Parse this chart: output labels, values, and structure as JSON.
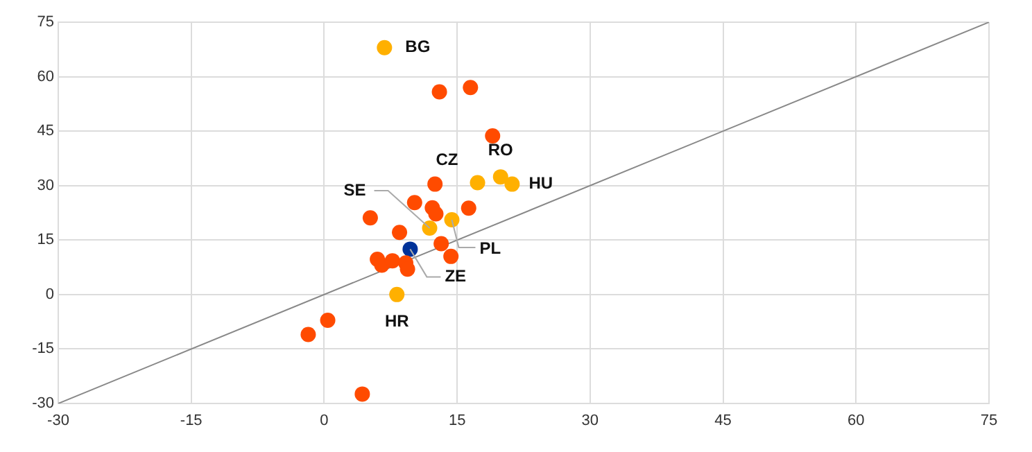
{
  "chart_data": {
    "type": "scatter",
    "xlim": [
      -30,
      75
    ],
    "ylim": [
      -30,
      75
    ],
    "xticks": [
      -30,
      -15,
      0,
      15,
      30,
      45,
      60,
      75
    ],
    "yticks": [
      -30,
      -15,
      0,
      15,
      30,
      45,
      60,
      75
    ],
    "grid": true,
    "legend": false,
    "marker": "circle",
    "series": [
      {
        "color": "#ff4b00",
        "x": [
          13.0,
          16.5,
          19.0,
          12.5,
          10.2,
          12.2,
          12.6,
          16.3,
          5.2,
          8.5,
          13.2,
          14.3,
          6.0,
          6.5,
          7.7,
          9.2,
          9.4,
          0.4,
          -1.8,
          4.3
        ],
        "values": [
          55.8,
          57,
          43.7,
          30.4,
          25.3,
          23.9,
          22.2,
          23.8,
          21.1,
          17.1,
          14.0,
          10.5,
          9.7,
          8.1,
          9.3,
          8.7,
          7.0,
          -7.1,
          -11,
          -27.4
        ]
      },
      {
        "color": "#ffb000",
        "x": [
          6.8,
          17.3,
          19.9,
          21.2,
          14.4,
          11.9,
          8.2
        ],
        "values": [
          68,
          30.8,
          32.4,
          30.4,
          20.6,
          18.3,
          0
        ]
      },
      {
        "color": "#003299",
        "x": [
          9.7
        ],
        "values": [
          12.5
        ]
      },
      {
        "type": "line",
        "color": "#888888",
        "x": [
          -30,
          75
        ],
        "values": [
          -30,
          75
        ],
        "marker": "none"
      }
    ],
    "annotations": [
      {
        "text": "BG",
        "x": 6.8,
        "y": 68
      },
      {
        "text": "CZ",
        "x": 17.3,
        "y": 30.8
      },
      {
        "text": "RO",
        "x": 19.9,
        "y": 32.4
      },
      {
        "text": "HU",
        "x": 21.2,
        "y": 30.4
      },
      {
        "text": "PL",
        "x": 14.4,
        "y": 20.6
      },
      {
        "text": "SE",
        "x": 11.9,
        "y": 18.3
      },
      {
        "text": "ZE",
        "x": 9.7,
        "y": 12.5
      },
      {
        "text": "HR",
        "x": 8.2,
        "y": 0
      }
    ]
  }
}
